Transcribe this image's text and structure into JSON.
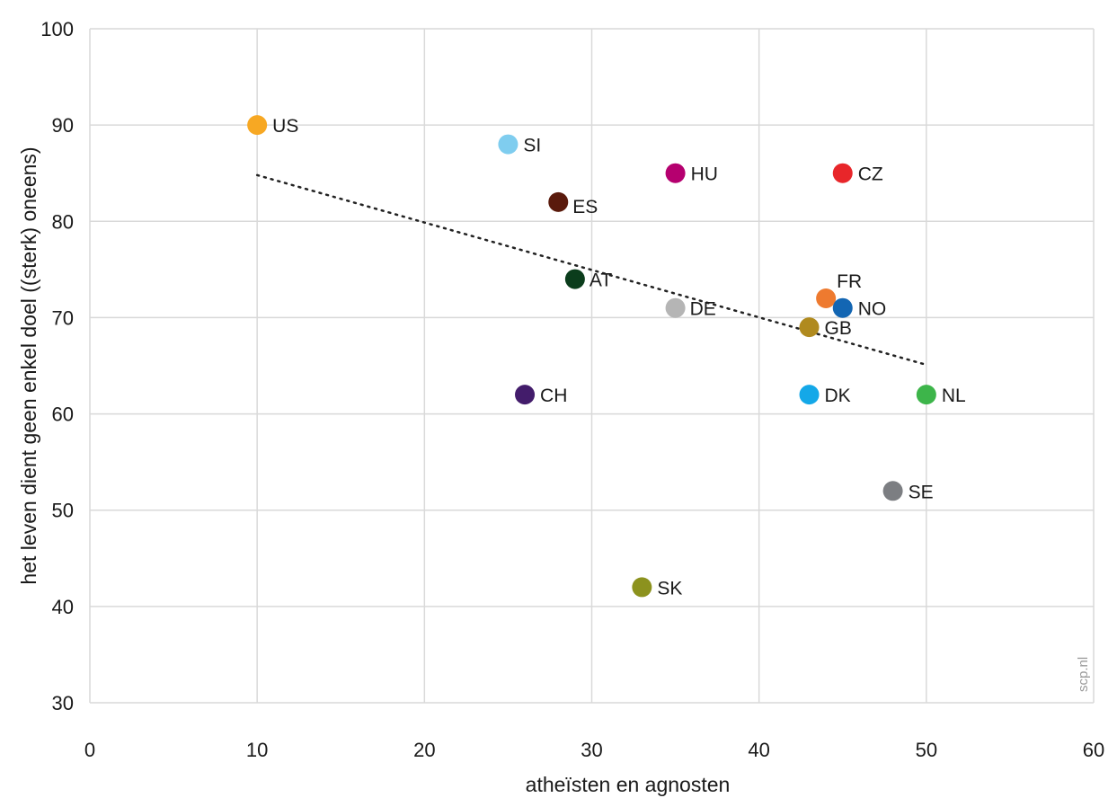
{
  "chart_data": {
    "type": "scatter",
    "xlabel": "atheïsten en agnosten",
    "ylabel": "het leven dient geen enkel doel ((sterk) oneens)",
    "xlim": [
      0,
      60
    ],
    "ylim": [
      30,
      100
    ],
    "x_ticks": [
      "0",
      "10",
      "20",
      "30",
      "40",
      "50",
      "60"
    ],
    "y_ticks": [
      "30",
      "40",
      "50",
      "60",
      "70",
      "80",
      "90",
      "100"
    ],
    "grid": true,
    "points": [
      {
        "label": "US",
        "x": 10,
        "y": 90,
        "color": "#F7A823"
      },
      {
        "label": "SI",
        "x": 25,
        "y": 88,
        "color": "#7FCDEF"
      },
      {
        "label": "HU",
        "x": 35,
        "y": 85,
        "color": "#B5006F"
      },
      {
        "label": "CZ",
        "x": 45,
        "y": 85,
        "color": "#E8262A"
      },
      {
        "label": "ES",
        "x": 28,
        "y": 82,
        "color": "#5A1A0C"
      },
      {
        "label": "AT",
        "x": 29,
        "y": 74,
        "color": "#0B3D1C"
      },
      {
        "label": "FR",
        "x": 44,
        "y": 72,
        "color": "#EE7A2F"
      },
      {
        "label": "NO",
        "x": 45,
        "y": 71,
        "color": "#1366B3"
      },
      {
        "label": "DE",
        "x": 35,
        "y": 71,
        "color": "#B5B5B5"
      },
      {
        "label": "GB",
        "x": 43,
        "y": 69,
        "color": "#B08A1E"
      },
      {
        "label": "CH",
        "x": 26,
        "y": 62,
        "color": "#431C6B"
      },
      {
        "label": "DK",
        "x": 43,
        "y": 62,
        "color": "#14A8E8"
      },
      {
        "label": "NL",
        "x": 50,
        "y": 62,
        "color": "#3DB54A"
      },
      {
        "label": "SE",
        "x": 48,
        "y": 52,
        "color": "#7C7E82"
      },
      {
        "label": "SK",
        "x": 33,
        "y": 42,
        "color": "#8C921E"
      }
    ],
    "trendline": {
      "x": [
        10,
        50
      ],
      "y": [
        84.8,
        65.1
      ],
      "style": "dotted"
    },
    "watermark": "scp.nl"
  }
}
